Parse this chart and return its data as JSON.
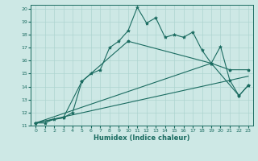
{
  "xlabel": "Humidex (Indice chaleur)",
  "xlim": [
    -0.5,
    23.5
  ],
  "ylim": [
    11,
    20.3
  ],
  "xticks": [
    0,
    1,
    2,
    3,
    4,
    5,
    6,
    7,
    8,
    9,
    10,
    11,
    12,
    13,
    14,
    15,
    16,
    17,
    18,
    19,
    20,
    21,
    22,
    23
  ],
  "yticks": [
    11,
    12,
    13,
    14,
    15,
    16,
    17,
    18,
    19,
    20
  ],
  "bg_color": "#cde8e5",
  "line_color": "#1a6b60",
  "grid_color": "#aed4d0",
  "main_x": [
    0,
    1,
    2,
    3,
    4,
    5,
    6,
    7,
    8,
    9,
    10,
    11,
    12,
    13,
    14,
    15,
    16,
    17,
    18,
    19,
    20,
    21,
    22,
    23
  ],
  "main_y": [
    11.2,
    11.2,
    11.5,
    11.6,
    12.0,
    14.4,
    15.0,
    15.3,
    17.0,
    17.5,
    18.3,
    20.1,
    18.9,
    19.3,
    17.8,
    18.0,
    17.8,
    18.2,
    16.8,
    15.8,
    17.1,
    14.5,
    13.3,
    14.1
  ],
  "line1_x": [
    0,
    19,
    21,
    23
  ],
  "line1_y": [
    11.2,
    15.8,
    15.3,
    15.3
  ],
  "line2_x": [
    0,
    3,
    5,
    10,
    19,
    22,
    23
  ],
  "line2_y": [
    11.2,
    11.6,
    14.4,
    17.5,
    15.8,
    13.3,
    14.1
  ],
  "line3_x": [
    0,
    23
  ],
  "line3_y": [
    11.2,
    14.8
  ]
}
